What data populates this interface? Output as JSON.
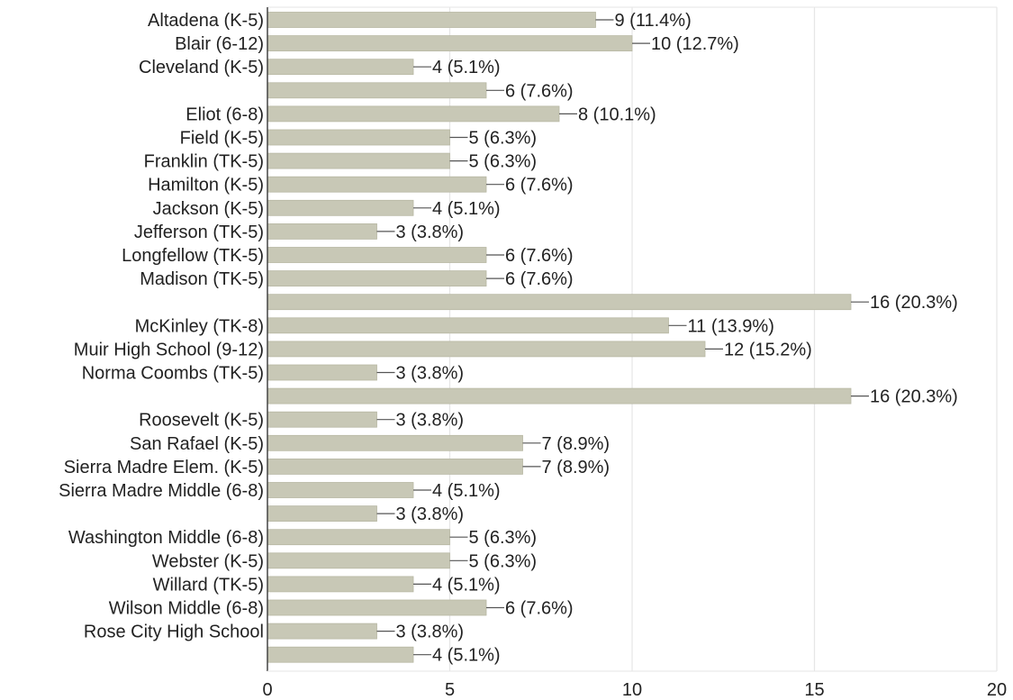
{
  "chart_data": {
    "type": "bar",
    "orientation": "horizontal",
    "categories": [
      "Altadena (K-5)",
      "Blair (6-12)",
      "Cleveland (K-5)",
      "",
      "Eliot (6-8)",
      "Field (K-5)",
      "Franklin (TK-5)",
      "Hamilton (K-5)",
      "Jackson (K-5)",
      "Jefferson (TK-5)",
      "Longfellow (TK-5)",
      "Madison (TK-5)",
      "",
      "McKinley (TK-8)",
      "Muir High School (9-12)",
      "Norma Coombs (TK-5)",
      "",
      "Roosevelt (K-5)",
      "San Rafael (K-5)",
      "Sierra Madre Elem. (K-5)",
      "Sierra Madre Middle (6-8)",
      "",
      "Washington Middle (6-8)",
      "Webster (K-5)",
      "Willard (TK-5)",
      "Wilson Middle (6-8)",
      "Rose City High School",
      ""
    ],
    "values": [
      9,
      10,
      4,
      6,
      8,
      5,
      5,
      6,
      4,
      3,
      6,
      6,
      16,
      11,
      12,
      3,
      16,
      3,
      7,
      7,
      4,
      3,
      5,
      5,
      4,
      6,
      3,
      4
    ],
    "value_labels": [
      "9 (11.4%)",
      "10 (12.7%)",
      "4 (5.1%)",
      "6 (7.6%)",
      "8 (10.1%)",
      "5 (6.3%)",
      "5 (6.3%)",
      "6 (7.6%)",
      "4 (5.1%)",
      "3 (3.8%)",
      "6 (7.6%)",
      "6 (7.6%)",
      "16 (20.3%)",
      "11 (13.9%)",
      "12 (15.2%)",
      "3 (3.8%)",
      "16 (20.3%)",
      "3 (3.8%)",
      "7 (8.9%)",
      "7 (8.9%)",
      "4 (5.1%)",
      "3 (3.8%)",
      "5 (6.3%)",
      "5 (6.3%)",
      "4 (5.1%)",
      "6 (7.6%)",
      "3 (3.8%)",
      "4 (5.1%)"
    ],
    "x_ticks": [
      "0",
      "5",
      "10",
      "15",
      "20"
    ],
    "xlim": [
      0,
      20
    ],
    "grid": true,
    "legend": "none",
    "title": "",
    "xlabel": "",
    "ylabel": "",
    "colors": {
      "bar": "#c8c8b6",
      "bar_stroke": "#b8b8a4",
      "grid": "#e6e6e6",
      "axis": "#444444",
      "leader": "#555555",
      "text": "#222222"
    }
  }
}
